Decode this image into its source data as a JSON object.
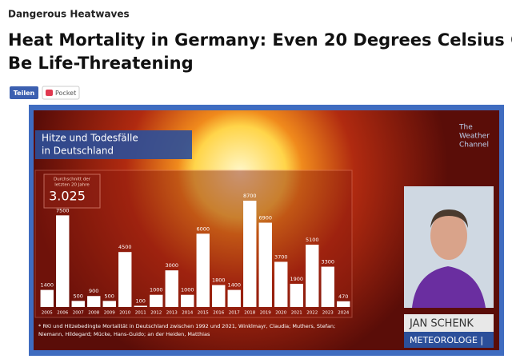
{
  "header": {
    "kicker": "Dangerous Heatwaves",
    "title_lines": [
      "Heat Mortality in Germany: Even 20 Degrees Celsius Can",
      "Be Life-Threatening"
    ]
  },
  "buttons": {
    "share": "Teilen",
    "pocket": "Pocket"
  },
  "video": {
    "logo_lines": [
      "The",
      "Weather",
      "Channel"
    ],
    "presenter_name": "JAN SCHENK",
    "presenter_role": "METEOROLOGE |",
    "average": {
      "label_lines": [
        "Durchschnitt der",
        "letzten 20 Jahre"
      ],
      "value": "3.025"
    },
    "footnote_lines": [
      "* RKI und Hitzebedingte Mortalität in Deutschland zwischen 1992 und 2021, Winklmayr, Claudia; Muthers, Stefan;",
      "Niemann, Hildegard; Mücke, Hans-Guido; an der Heiden, Matthias"
    ]
  },
  "chart_data": {
    "type": "bar",
    "title_lines": [
      "Hitze und Todesfälle",
      "in Deutschland"
    ],
    "categories": [
      "2005",
      "2006",
      "2007",
      "2008",
      "2009",
      "2010",
      "2011",
      "2012",
      "2013",
      "2014",
      "2015",
      "2016",
      "2017",
      "2018",
      "2019",
      "2020",
      "2021",
      "2022",
      "2023",
      "2024"
    ],
    "values": [
      1400,
      7500,
      500,
      900,
      500,
      4500,
      100,
      1000,
      3000,
      1000,
      6000,
      1800,
      1400,
      8700,
      6900,
      3700,
      1900,
      5100,
      3300,
      470
    ],
    "color": "#ffffff"
  }
}
